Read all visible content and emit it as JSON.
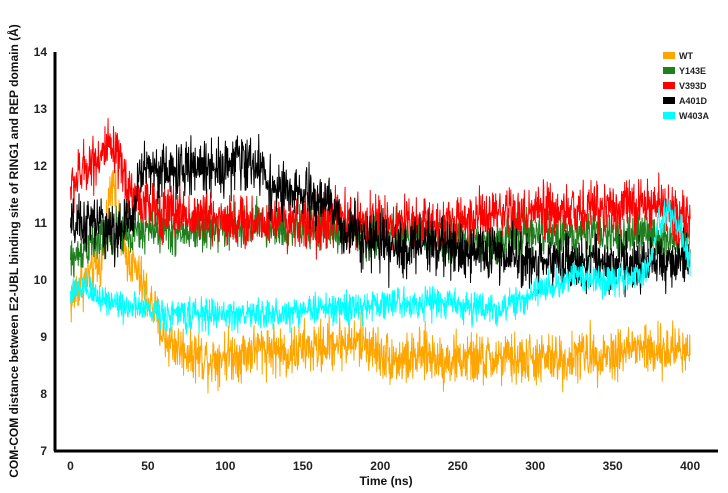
{
  "chart_data": {
    "type": "line",
    "title": "",
    "xlabel": "Time (ns)",
    "ylabel": "COM-COM distance between E2-UBL binding site of RING1 and REP domain (Å)",
    "xlim": [
      -10,
      418
    ],
    "ylim": [
      7,
      14
    ],
    "xticks": [
      0,
      50,
      100,
      150,
      200,
      250,
      300,
      350,
      400
    ],
    "yticks": [
      7,
      8,
      9,
      10,
      11,
      12,
      13,
      14
    ],
    "grid": false,
    "legend_position": "top-right",
    "series": [
      {
        "name": "WT",
        "color": "#FFA500",
        "noise": 0.28,
        "points": [
          [
            0,
            9.6
          ],
          [
            5,
            9.9
          ],
          [
            10,
            10.0
          ],
          [
            15,
            10.2
          ],
          [
            20,
            10.3
          ],
          [
            25,
            11.4
          ],
          [
            28,
            12.0
          ],
          [
            30,
            11.0
          ],
          [
            35,
            10.5
          ],
          [
            40,
            10.3
          ],
          [
            45,
            10.0
          ],
          [
            50,
            9.7
          ],
          [
            55,
            9.4
          ],
          [
            60,
            9.0
          ],
          [
            70,
            8.8
          ],
          [
            80,
            8.7
          ],
          [
            90,
            8.6
          ],
          [
            100,
            8.7
          ],
          [
            110,
            8.7
          ],
          [
            120,
            8.8
          ],
          [
            130,
            8.8
          ],
          [
            140,
            8.7
          ],
          [
            150,
            8.8
          ],
          [
            160,
            8.8
          ],
          [
            170,
            8.9
          ],
          [
            180,
            8.9
          ],
          [
            190,
            8.9
          ],
          [
            200,
            8.7
          ],
          [
            210,
            8.6
          ],
          [
            220,
            8.6
          ],
          [
            230,
            8.7
          ],
          [
            240,
            8.6
          ],
          [
            250,
            8.6
          ],
          [
            260,
            8.6
          ],
          [
            270,
            8.6
          ],
          [
            280,
            8.6
          ],
          [
            290,
            8.6
          ],
          [
            300,
            8.6
          ],
          [
            310,
            8.6
          ],
          [
            320,
            8.6
          ],
          [
            330,
            8.7
          ],
          [
            340,
            8.7
          ],
          [
            350,
            8.7
          ],
          [
            360,
            8.8
          ],
          [
            370,
            8.8
          ],
          [
            380,
            8.7
          ],
          [
            390,
            8.8
          ],
          [
            400,
            8.8
          ]
        ]
      },
      {
        "name": "Y143E",
        "color": "#1E7F1E",
        "noise": 0.24,
        "points": [
          [
            0,
            10.3
          ],
          [
            10,
            10.6
          ],
          [
            20,
            10.7
          ],
          [
            30,
            10.8
          ],
          [
            40,
            10.8
          ],
          [
            50,
            10.9
          ],
          [
            60,
            10.9
          ],
          [
            70,
            10.8
          ],
          [
            80,
            10.9
          ],
          [
            90,
            10.9
          ],
          [
            100,
            10.9
          ],
          [
            110,
            10.9
          ],
          [
            120,
            11.0
          ],
          [
            130,
            10.9
          ],
          [
            140,
            10.9
          ],
          [
            150,
            10.9
          ],
          [
            160,
            10.9
          ],
          [
            170,
            10.9
          ],
          [
            180,
            10.9
          ],
          [
            190,
            10.8
          ],
          [
            200,
            10.8
          ],
          [
            210,
            10.8
          ],
          [
            220,
            10.8
          ],
          [
            230,
            10.8
          ],
          [
            240,
            10.7
          ],
          [
            250,
            10.7
          ],
          [
            260,
            10.7
          ],
          [
            270,
            10.7
          ],
          [
            280,
            10.7
          ],
          [
            290,
            10.8
          ],
          [
            300,
            10.8
          ],
          [
            310,
            10.8
          ],
          [
            320,
            10.8
          ],
          [
            330,
            10.8
          ],
          [
            340,
            10.8
          ],
          [
            350,
            10.8
          ],
          [
            360,
            10.8
          ],
          [
            370,
            10.8
          ],
          [
            380,
            10.7
          ],
          [
            390,
            10.8
          ],
          [
            400,
            10.6
          ]
        ]
      },
      {
        "name": "V393D",
        "color": "#FF0000",
        "noise": 0.3,
        "points": [
          [
            0,
            11.6
          ],
          [
            5,
            11.8
          ],
          [
            10,
            12.0
          ],
          [
            15,
            12.1
          ],
          [
            20,
            12.2
          ],
          [
            25,
            12.3
          ],
          [
            30,
            12.1
          ],
          [
            35,
            11.8
          ],
          [
            40,
            11.5
          ],
          [
            50,
            11.3
          ],
          [
            60,
            11.2
          ],
          [
            70,
            11.2
          ],
          [
            80,
            11.1
          ],
          [
            90,
            11.1
          ],
          [
            100,
            11.1
          ],
          [
            110,
            11.0
          ],
          [
            120,
            11.0
          ],
          [
            130,
            11.1
          ],
          [
            140,
            11.1
          ],
          [
            150,
            11.0
          ],
          [
            160,
            11.0
          ],
          [
            170,
            11.1
          ],
          [
            180,
            11.0
          ],
          [
            190,
            11.0
          ],
          [
            200,
            11.0
          ],
          [
            210,
            11.0
          ],
          [
            220,
            11.0
          ],
          [
            230,
            11.0
          ],
          [
            240,
            11.0
          ],
          [
            250,
            11.0
          ],
          [
            260,
            11.1
          ],
          [
            270,
            11.1
          ],
          [
            280,
            11.1
          ],
          [
            290,
            11.1
          ],
          [
            300,
            11.2
          ],
          [
            310,
            11.2
          ],
          [
            320,
            11.2
          ],
          [
            330,
            11.2
          ],
          [
            340,
            11.3
          ],
          [
            350,
            11.3
          ],
          [
            360,
            11.3
          ],
          [
            370,
            11.3
          ],
          [
            380,
            11.3
          ],
          [
            390,
            11.2
          ],
          [
            400,
            11.1
          ]
        ]
      },
      {
        "name": "A401D",
        "color": "#000000",
        "noise": 0.3,
        "points": [
          [
            0,
            10.9
          ],
          [
            10,
            11.0
          ],
          [
            20,
            11.0
          ],
          [
            30,
            10.8
          ],
          [
            40,
            11.1
          ],
          [
            45,
            11.9
          ],
          [
            50,
            12.0
          ],
          [
            60,
            11.9
          ],
          [
            70,
            11.9
          ],
          [
            80,
            12.0
          ],
          [
            90,
            12.0
          ],
          [
            100,
            12.0
          ],
          [
            110,
            12.1
          ],
          [
            120,
            12.0
          ],
          [
            125,
            11.9
          ],
          [
            130,
            11.6
          ],
          [
            140,
            11.5
          ],
          [
            150,
            11.5
          ],
          [
            160,
            11.4
          ],
          [
            170,
            11.3
          ],
          [
            175,
            10.8
          ],
          [
            180,
            10.9
          ],
          [
            190,
            10.8
          ],
          [
            200,
            10.6
          ],
          [
            210,
            10.5
          ],
          [
            220,
            10.6
          ],
          [
            230,
            10.7
          ],
          [
            240,
            10.6
          ],
          [
            250,
            10.5
          ],
          [
            260,
            10.5
          ],
          [
            270,
            10.5
          ],
          [
            280,
            10.4
          ],
          [
            290,
            10.4
          ],
          [
            300,
            10.3
          ],
          [
            310,
            10.4
          ],
          [
            320,
            10.3
          ],
          [
            330,
            10.3
          ],
          [
            340,
            10.3
          ],
          [
            350,
            10.3
          ],
          [
            360,
            10.3
          ],
          [
            370,
            10.3
          ],
          [
            380,
            10.3
          ],
          [
            390,
            10.3
          ],
          [
            400,
            10.3
          ]
        ]
      },
      {
        "name": "W403A",
        "color": "#00FFFF",
        "noise": 0.17,
        "points": [
          [
            0,
            9.8
          ],
          [
            10,
            9.8
          ],
          [
            20,
            9.7
          ],
          [
            30,
            9.6
          ],
          [
            40,
            9.5
          ],
          [
            50,
            9.5
          ],
          [
            60,
            9.4
          ],
          [
            70,
            9.4
          ],
          [
            80,
            9.4
          ],
          [
            90,
            9.4
          ],
          [
            100,
            9.4
          ],
          [
            110,
            9.4
          ],
          [
            120,
            9.4
          ],
          [
            130,
            9.4
          ],
          [
            140,
            9.4
          ],
          [
            150,
            9.5
          ],
          [
            160,
            9.5
          ],
          [
            170,
            9.5
          ],
          [
            180,
            9.5
          ],
          [
            190,
            9.5
          ],
          [
            200,
            9.6
          ],
          [
            210,
            9.6
          ],
          [
            220,
            9.6
          ],
          [
            230,
            9.6
          ],
          [
            240,
            9.6
          ],
          [
            250,
            9.6
          ],
          [
            260,
            9.5
          ],
          [
            270,
            9.5
          ],
          [
            280,
            9.5
          ],
          [
            290,
            9.6
          ],
          [
            300,
            9.8
          ],
          [
            310,
            9.9
          ],
          [
            320,
            10.0
          ],
          [
            330,
            10.1
          ],
          [
            340,
            10.0
          ],
          [
            350,
            10.0
          ],
          [
            360,
            10.0
          ],
          [
            370,
            10.1
          ],
          [
            375,
            10.4
          ],
          [
            380,
            11.0
          ],
          [
            385,
            11.2
          ],
          [
            390,
            11.1
          ],
          [
            395,
            10.8
          ],
          [
            400,
            10.3
          ]
        ]
      }
    ]
  }
}
